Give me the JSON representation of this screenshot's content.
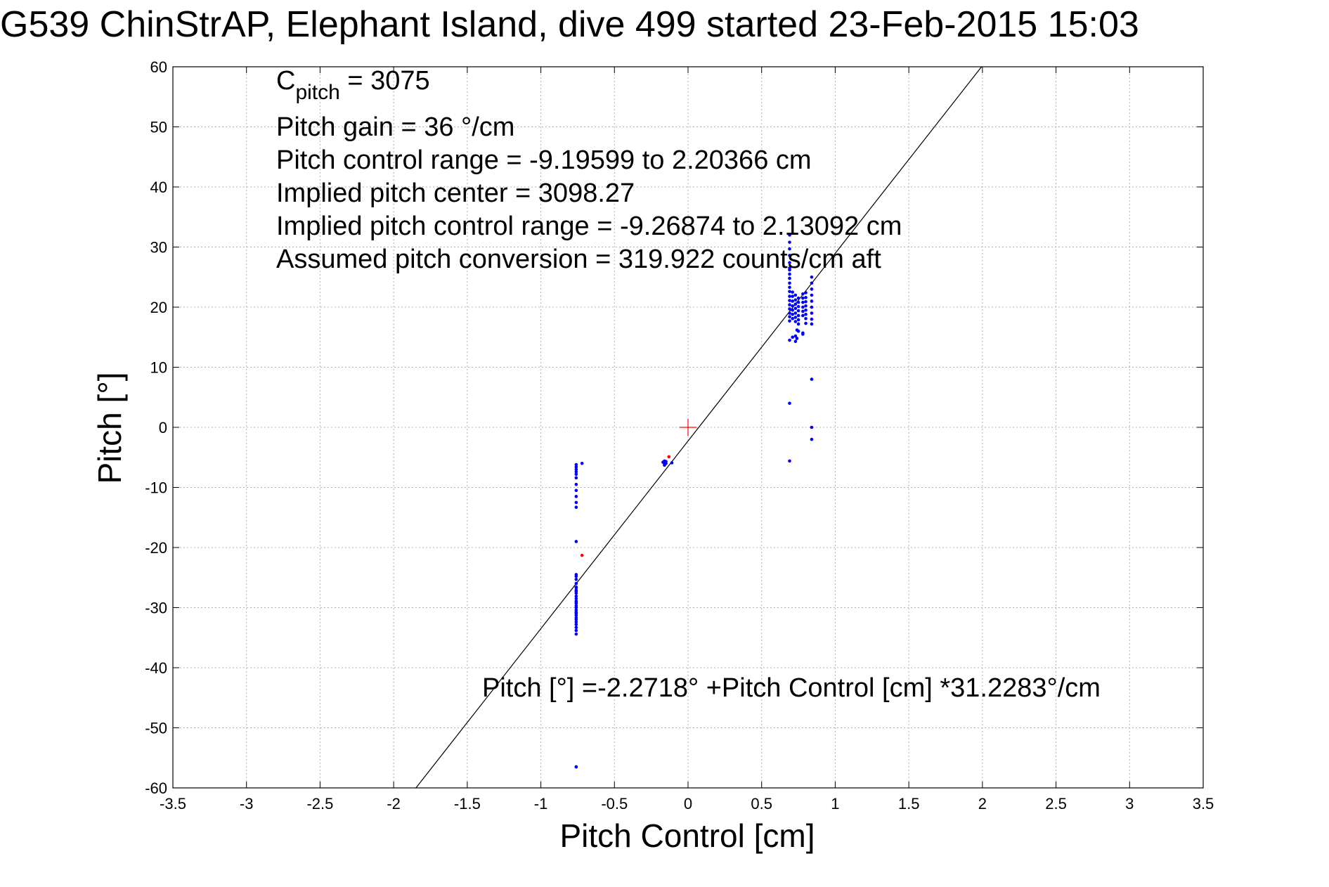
{
  "chart_data": {
    "type": "scatter",
    "title": "G539 ChinStrAP, Elephant Island, dive 499 started 23-Feb-2015 15:03",
    "xlabel": "Pitch Control [cm]",
    "ylabel": "Pitch [°]",
    "xlim": [
      -3.5,
      3.5
    ],
    "ylim": [
      -60,
      60
    ],
    "xticks": [
      -3.5,
      -3,
      -2.5,
      -2,
      -1.5,
      -1,
      -0.5,
      0,
      0.5,
      1,
      1.5,
      2,
      2.5,
      3,
      3.5
    ],
    "xtick_labels": [
      "-3.5",
      "-3",
      "-2.5",
      "-2",
      "-1.5",
      "-1",
      "-0.5",
      "0",
      "0.5",
      "1",
      "1.5",
      "2",
      "2.5",
      "3",
      "3.5"
    ],
    "yticks": [
      -60,
      -50,
      -40,
      -30,
      -20,
      -10,
      0,
      10,
      20,
      30,
      40,
      50,
      60
    ],
    "ytick_labels": [
      "-60",
      "-50",
      "-40",
      "-30",
      "-20",
      "-10",
      "0",
      "10",
      "20",
      "30",
      "40",
      "50",
      "60"
    ],
    "grid": true,
    "colors": {
      "good_points": "#0000ff",
      "flagged_points": "#ff0000",
      "fit_line": "#000000",
      "center_marker": "#ff0000",
      "grid": "#b0b0b0"
    },
    "annotations": {
      "c_pitch_letter": "C",
      "c_pitch_sub": "pitch",
      "c_pitch_value": " = 3075",
      "pitch_gain": "Pitch gain = 36 °/cm",
      "pitch_control_range": "Pitch control range = -9.19599 to 2.20366 cm",
      "implied_pitch_center": "Implied pitch center = 3098.27",
      "implied_pitch_control_range": "Implied pitch control range = -9.26874 to 2.13092 cm",
      "assumed_pitch_conversion": "Assumed pitch conversion = 319.922 counts/cm aft",
      "fit_equation": "Pitch [°] =-2.2718° +Pitch Control [cm] *31.2283°/cm"
    },
    "fit_line": {
      "intercept": -2.2718,
      "slope": 31.2283
    },
    "center_marker": {
      "x": 0,
      "y": 0
    },
    "series": [
      {
        "x": [
          -0.76,
          -0.76,
          -0.76,
          -0.76,
          -0.76,
          -0.76,
          -0.76,
          -0.76,
          -0.76,
          -0.76,
          -0.76,
          -0.76,
          -0.76,
          -0.76,
          -0.76,
          -0.76,
          -0.76,
          -0.76,
          -0.76,
          -0.76,
          -0.76,
          -0.76,
          -0.76,
          -0.76,
          -0.76,
          -0.76,
          -0.76,
          -0.76,
          -0.76,
          -0.76,
          -0.76,
          -0.76,
          -0.76,
          -0.76,
          -0.76,
          -0.76,
          -0.76,
          -0.76,
          -0.76,
          -0.76,
          -0.76,
          -0.72,
          -0.76,
          -0.16,
          -0.16,
          -0.16,
          -0.16,
          -0.17,
          -0.15,
          -0.15,
          -0.11,
          0.69,
          0.69,
          0.69,
          0.69,
          0.69,
          0.69,
          0.69,
          0.69,
          0.69,
          0.69,
          0.69,
          0.69,
          0.69,
          0.69,
          0.69,
          0.69,
          0.69,
          0.69,
          0.69,
          0.69,
          0.71,
          0.71,
          0.71,
          0.71,
          0.71,
          0.71,
          0.71,
          0.71,
          0.73,
          0.73,
          0.73,
          0.73,
          0.73,
          0.73,
          0.73,
          0.73,
          0.73,
          0.75,
          0.75,
          0.75,
          0.75,
          0.75,
          0.75,
          0.75,
          0.75,
          0.78,
          0.78,
          0.78,
          0.78,
          0.78,
          0.78,
          0.78,
          0.8,
          0.8,
          0.8,
          0.8,
          0.8,
          0.8,
          0.8,
          0.8,
          0.84,
          0.84,
          0.84,
          0.84,
          0.84,
          0.84,
          0.84,
          0.84,
          0.84,
          0.69,
          0.69,
          0.74,
          0.74,
          0.78,
          0.84,
          0.84,
          0.84
        ],
        "y": [
          -6.2,
          -6.6,
          -7.0,
          -7.4,
          -7.8,
          -8.4,
          -9.5,
          -10.5,
          -11.5,
          -12.5,
          -13.3,
          -19.0,
          -24.5,
          -25.3,
          -26.0,
          -26.6,
          -27.1,
          -27.6,
          -28.1,
          -28.5,
          -28.9,
          -29.3,
          -29.7,
          -30.0,
          -30.4,
          -30.7,
          -31.0,
          -31.3,
          -31.7,
          -32.0,
          -32.4,
          -32.8,
          -33.3,
          -33.8,
          -34.4,
          -27.3,
          -29.1,
          -30.8,
          -56.5,
          -24.8,
          -26.7,
          -6.0,
          -56.5,
          -5.6,
          -5.9,
          -6.1,
          -6.3,
          -5.8,
          -5.7,
          -6.0,
          -5.9,
          32.0,
          30.8,
          29.7,
          28.6,
          27.4,
          26.2,
          25.5,
          24.8,
          24.0,
          23.3,
          22.6,
          21.8,
          21.1,
          20.4,
          19.7,
          19.0,
          18.4,
          17.7,
          14.5,
          4.0,
          22.5,
          21.8,
          21.0,
          20.2,
          19.5,
          18.8,
          18.1,
          15.0,
          22.0,
          21.2,
          20.5,
          19.8,
          19.0,
          18.3,
          17.6,
          15.2,
          14.3,
          21.5,
          20.8,
          20.1,
          19.4,
          18.6,
          17.9,
          17.2,
          16.0,
          22.2,
          21.5,
          20.8,
          20.0,
          19.3,
          18.6,
          15.5,
          22.4,
          21.6,
          20.9,
          20.2,
          19.5,
          18.8,
          18.1,
          17.3,
          25.0,
          24.0,
          23.0,
          22.0,
          21.0,
          20.0,
          19.0,
          18.0,
          17.2,
          -5.6,
          26.5,
          14.8,
          16.2,
          15.7,
          8.0,
          0.0,
          -2.0
        ]
      },
      {
        "x": [
          -0.72,
          -0.13
        ],
        "y": [
          -21.3,
          -4.9
        ]
      }
    ]
  }
}
